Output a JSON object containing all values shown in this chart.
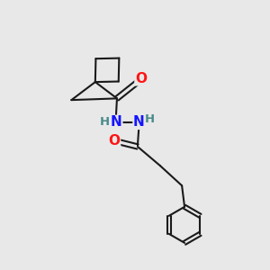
{
  "bg_color": "#e8e8e8",
  "bond_color": "#1a1a1a",
  "bond_width": 1.5,
  "atom_colors": {
    "N": "#1414ff",
    "O": "#ff1414",
    "H_color": "#4a8a8a"
  },
  "font_size_atom": 11,
  "font_size_H": 9.5
}
